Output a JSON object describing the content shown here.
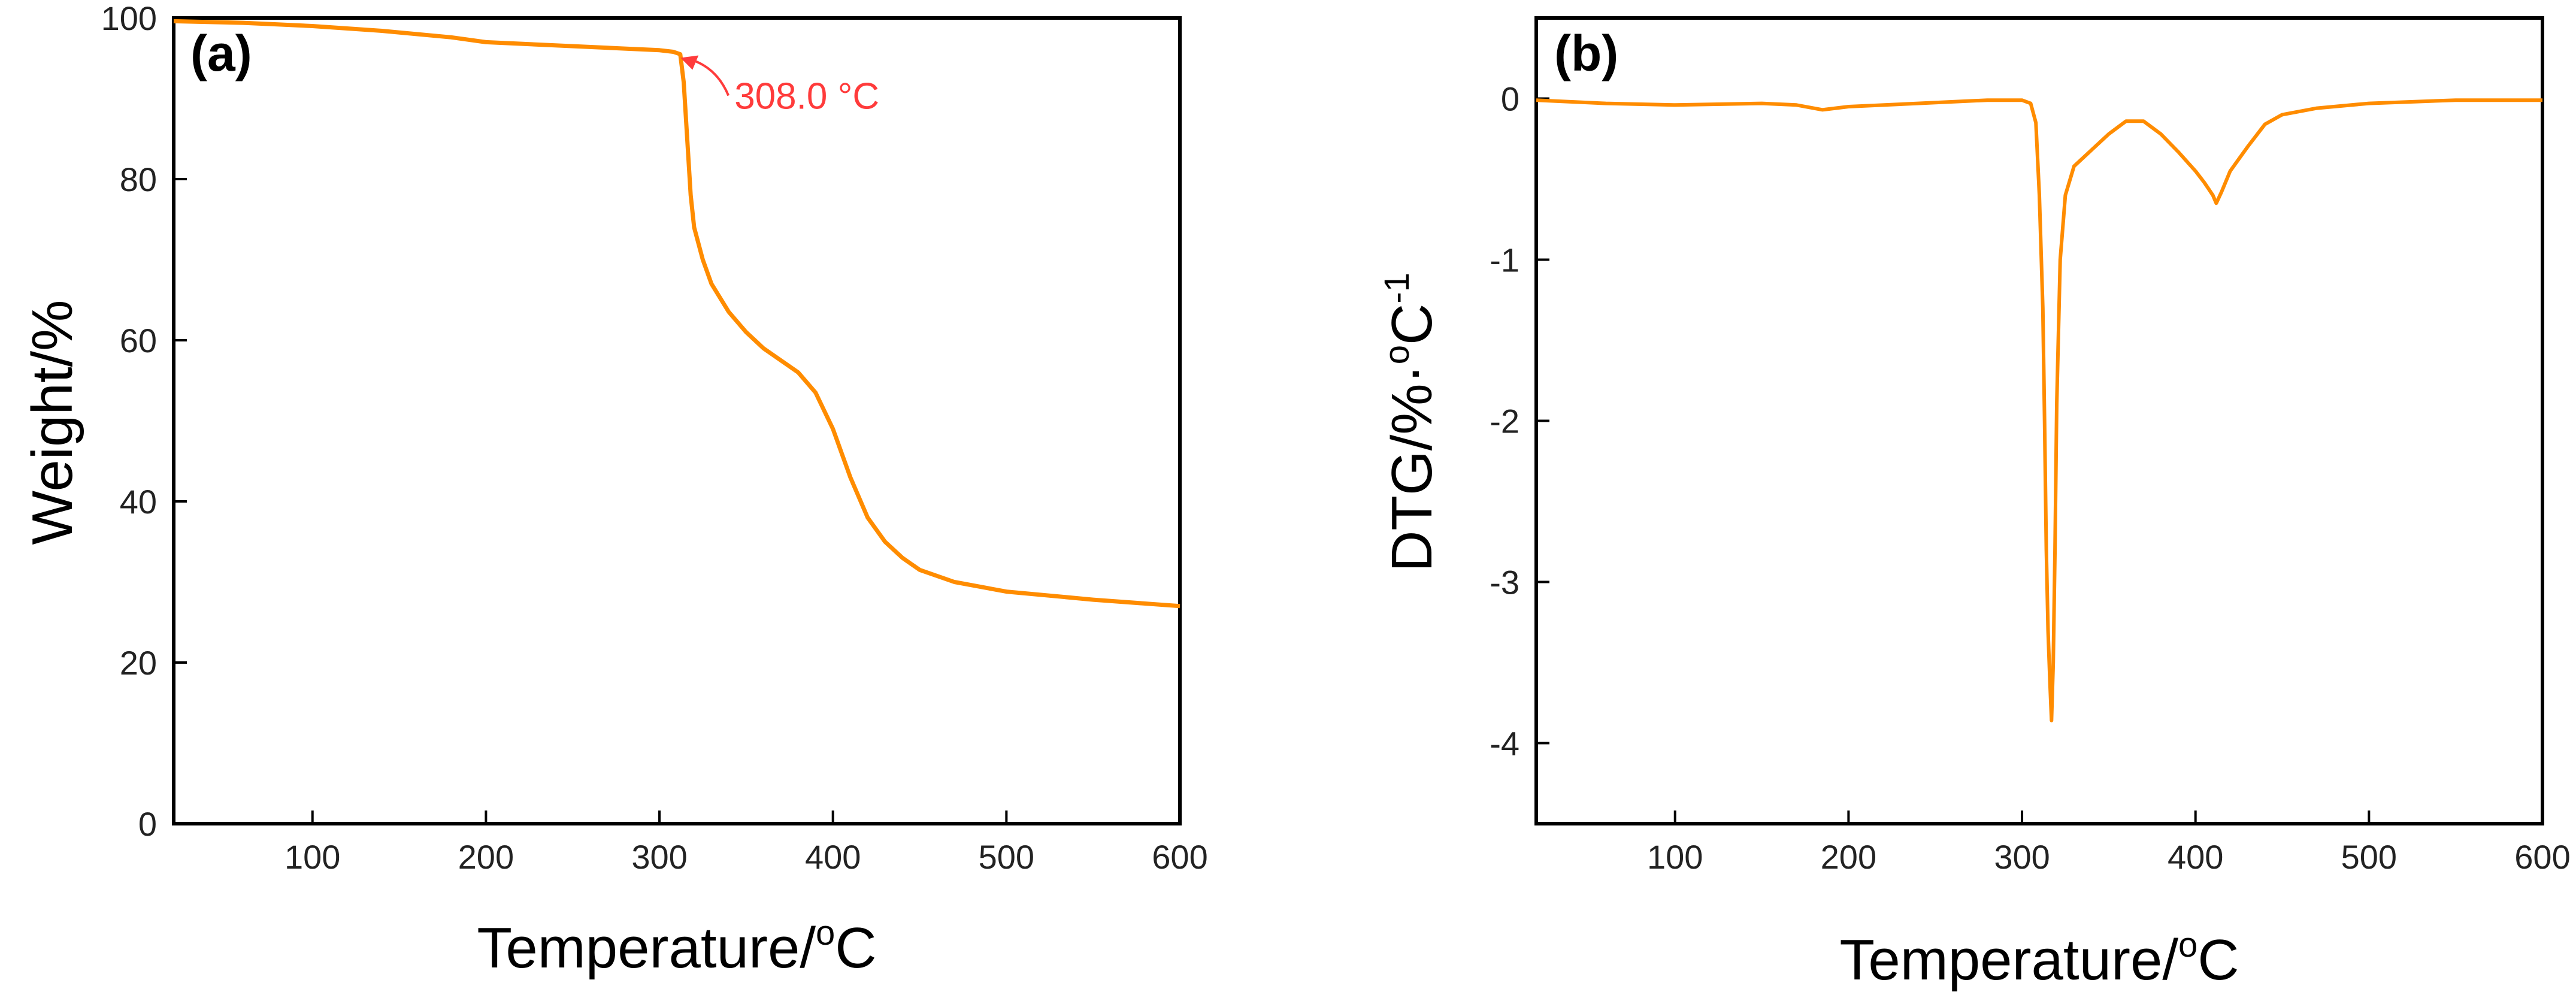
{
  "chart_data": [
    {
      "type": "line",
      "panel_label": "(a)",
      "xlabel": "Temperature/",
      "xlabel_sup": "o",
      "xlabel_unit": "C",
      "ylabel": "Weight/%",
      "xlim": [
        20,
        600
      ],
      "ylim": [
        0,
        100
      ],
      "x_ticks": [
        100,
        200,
        300,
        400,
        500,
        600
      ],
      "y_ticks": [
        0,
        20,
        40,
        60,
        80,
        100
      ],
      "x_tick_labels": [
        "100",
        "200",
        "300",
        "400",
        "500",
        "600"
      ],
      "y_tick_labels": [
        "0",
        "20",
        "40",
        "60",
        "80",
        "100"
      ],
      "line_color": "#ff8c00",
      "series": [
        {
          "name": "Weight",
          "x": [
            20,
            40,
            60,
            80,
            100,
            140,
            180,
            200,
            240,
            280,
            300,
            308,
            312,
            314,
            316,
            318,
            320,
            325,
            330,
            340,
            350,
            360,
            370,
            380,
            390,
            400,
            410,
            420,
            430,
            440,
            450,
            470,
            500,
            550,
            600
          ],
          "y": [
            99.6,
            99.5,
            99.4,
            99.2,
            99.0,
            98.4,
            97.6,
            97.0,
            96.6,
            96.2,
            96.0,
            95.8,
            95.5,
            92.0,
            85.0,
            78.0,
            74.0,
            70.0,
            67.0,
            63.5,
            61.0,
            59.0,
            57.5,
            56.0,
            53.5,
            49.0,
            43.0,
            38.0,
            35.0,
            33.0,
            31.5,
            30.0,
            28.8,
            27.8,
            27.0
          ]
        }
      ],
      "annotation": {
        "text": "308.0 °C",
        "x": 308,
        "y": 95.8,
        "color": "#ff3b3b"
      }
    },
    {
      "type": "line",
      "panel_label": "(b)",
      "xlabel": "Temperature/",
      "xlabel_sup": "o",
      "xlabel_unit": "C",
      "ylabel": "DTG/%·",
      "ylabel_sup": "o",
      "ylabel_unit": "C",
      "ylabel_sup2": "-1",
      "xlim": [
        20,
        600
      ],
      "ylim": [
        -4.5,
        0.5
      ],
      "x_ticks": [
        100,
        200,
        300,
        400,
        500,
        600
      ],
      "y_ticks": [
        -4,
        -3,
        -2,
        -1,
        0
      ],
      "x_tick_labels": [
        "100",
        "200",
        "300",
        "400",
        "500",
        "600"
      ],
      "y_tick_labels": [
        "-4",
        "-3",
        "-2",
        "-1",
        "0"
      ],
      "line_color": "#ff8c00",
      "series": [
        {
          "name": "DTG",
          "x": [
            20,
            60,
            100,
            150,
            170,
            185,
            200,
            240,
            280,
            300,
            305,
            308,
            310,
            312,
            313,
            314,
            315,
            316,
            317,
            318,
            319,
            320,
            322,
            325,
            330,
            340,
            350,
            360,
            370,
            380,
            390,
            400,
            405,
            410,
            412,
            415,
            420,
            430,
            440,
            450,
            470,
            500,
            550,
            600
          ],
          "y": [
            -0.01,
            -0.03,
            -0.04,
            -0.03,
            -0.04,
            -0.07,
            -0.05,
            -0.03,
            -0.01,
            -0.01,
            -0.03,
            -0.15,
            -0.6,
            -1.3,
            -2.0,
            -2.8,
            -3.3,
            -3.6,
            -3.86,
            -3.5,
            -2.8,
            -1.9,
            -1.0,
            -0.6,
            -0.42,
            -0.32,
            -0.22,
            -0.14,
            -0.14,
            -0.22,
            -0.33,
            -0.45,
            -0.52,
            -0.6,
            -0.65,
            -0.58,
            -0.45,
            -0.3,
            -0.16,
            -0.1,
            -0.06,
            -0.03,
            -0.01,
            -0.01
          ]
        }
      ]
    }
  ]
}
